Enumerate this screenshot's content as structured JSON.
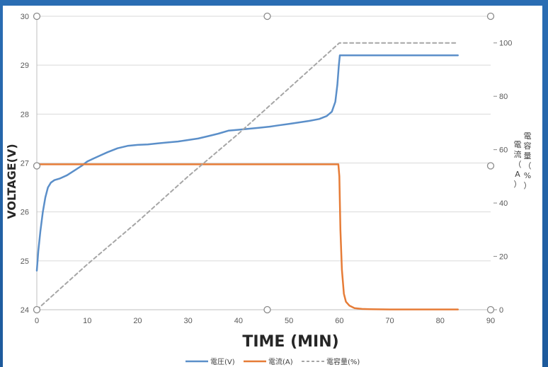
{
  "chart_data": {
    "type": "line",
    "xlabel": "TIME (MIN)",
    "ylabel": "VOLTAGE(V)",
    "y2label_col1": [
      "電",
      "流",
      "（",
      "A",
      "）"
    ],
    "y2label_col2": [
      "電",
      "容",
      "量",
      "（",
      "%",
      "）"
    ],
    "xlim": [
      0,
      90
    ],
    "ylim": [
      24,
      30
    ],
    "y2lim": [
      0,
      110
    ],
    "xticks": [
      0,
      10,
      20,
      30,
      40,
      50,
      60,
      70,
      80,
      90
    ],
    "yticks": [
      24,
      25,
      26,
      27,
      28,
      29,
      30
    ],
    "y2ticks": [
      0,
      20,
      40,
      60,
      80,
      100
    ],
    "grid": "horizontal",
    "legend_position": "bottom-center",
    "series": [
      {
        "name": "電圧(V)",
        "axis": "left",
        "color": "#5b8fc9",
        "dash": "none",
        "x": [
          0,
          0.3,
          0.7,
          1.2,
          1.7,
          2.2,
          2.8,
          3.5,
          4.5,
          6,
          7.5,
          9,
          10,
          11,
          12.5,
          14,
          16,
          18,
          20,
          22,
          24,
          26,
          28,
          30,
          32,
          34,
          36,
          38,
          40,
          42,
          44,
          46,
          48,
          50,
          52,
          54,
          56,
          57.5,
          58.5,
          59.2,
          59.6,
          59.9,
          60.1,
          62,
          65,
          70,
          75,
          80,
          83.5
        ],
        "values": [
          24.8,
          25.2,
          25.6,
          26.0,
          26.3,
          26.5,
          26.6,
          26.65,
          26.68,
          26.75,
          26.85,
          26.95,
          27.03,
          27.08,
          27.15,
          27.22,
          27.3,
          27.35,
          27.37,
          27.38,
          27.4,
          27.42,
          27.44,
          27.47,
          27.5,
          27.55,
          27.6,
          27.66,
          27.68,
          27.7,
          27.72,
          27.74,
          27.77,
          27.8,
          27.83,
          27.86,
          27.9,
          27.96,
          28.05,
          28.25,
          28.6,
          29.0,
          29.2,
          29.2,
          29.2,
          29.2,
          29.2,
          29.2,
          29.2
        ]
      },
      {
        "name": "電流(A)",
        "axis": "right",
        "color": "#e67c37",
        "dash": "none",
        "x": [
          0,
          5,
          10,
          20,
          30,
          40,
          50,
          55,
          59.8,
          60.0,
          60.2,
          60.5,
          60.9,
          61.3,
          62,
          63,
          64.5,
          66,
          70,
          80,
          83.5
        ],
        "values": [
          54.5,
          54.5,
          54.5,
          54.5,
          54.5,
          54.5,
          54.5,
          54.5,
          54.5,
          50,
          30,
          15,
          6,
          3,
          1.5,
          0.6,
          0.3,
          0.2,
          0.1,
          0.1,
          0.1
        ]
      },
      {
        "name": "電容量(%)",
        "axis": "right",
        "color": "#a6a6a6",
        "dash": "5,4",
        "x": [
          0,
          10,
          20,
          30,
          40,
          50,
          60,
          65,
          70,
          80,
          83.5
        ],
        "values": [
          0,
          17,
          33,
          50,
          66,
          83,
          100,
          100,
          100,
          100,
          100
        ]
      }
    ]
  }
}
